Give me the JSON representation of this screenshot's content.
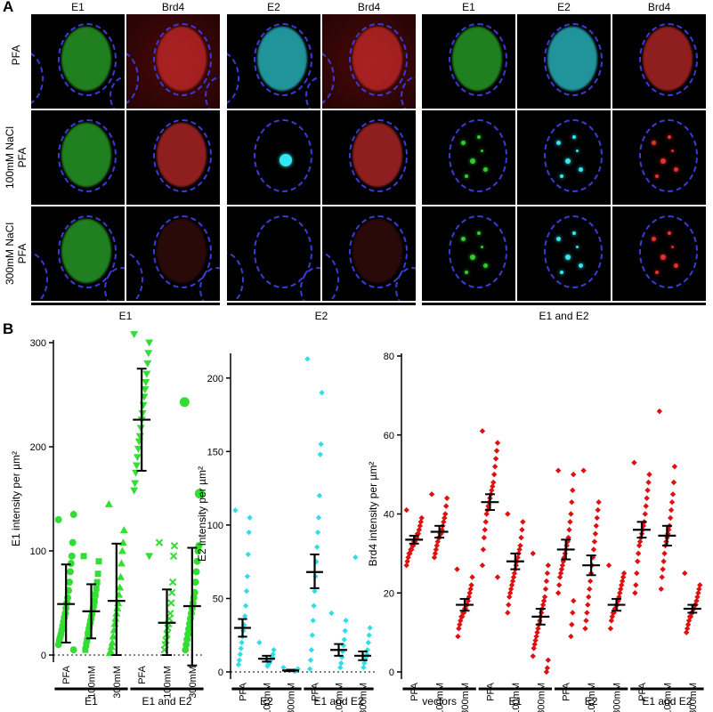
{
  "panel_a": {
    "letter": "A",
    "groups": [
      {
        "label": "E1",
        "columns": [
          "E1",
          "Brd4"
        ]
      },
      {
        "label": "E2",
        "columns": [
          "E2",
          "Brd4"
        ]
      },
      {
        "label": "E1 and E2",
        "columns": [
          "E1",
          "E2",
          "Brd4"
        ]
      }
    ],
    "rows": [
      {
        "line1": "PFA",
        "line2": ""
      },
      {
        "line1": "100mM NaCl",
        "line2": "PFA"
      },
      {
        "line1": "300mM NaCl",
        "line2": "PFA"
      }
    ],
    "colors": {
      "E1": "#32c832",
      "E2": "#33e6f2",
      "Brd4": "#e03030",
      "nucleus_outline": "#3b3bd6"
    }
  },
  "panel_b": {
    "letter": "B",
    "chart_data": [
      {
        "type": "scatter",
        "ylabel": "E1 intensity per µm²",
        "ylim": [
          0,
          300
        ],
        "yticks": [
          0,
          100,
          200,
          300
        ],
        "color": "#33dd33",
        "categories": [
          "PFA",
          "100mM",
          "300mM",
          "PFA",
          "100mM",
          "300mM"
        ],
        "groups": [
          {
            "label": "E1",
            "span": [
              0,
              2
            ]
          },
          {
            "label": "E1 and E2",
            "span": [
              3,
              5
            ]
          }
        ],
        "mean": [
          49,
          42,
          52,
          226,
          31,
          47
        ],
        "sd_low": [
          12,
          16,
          0,
          177,
          0,
          -10
        ],
        "sd_high": [
          87,
          68,
          107,
          275,
          63,
          103
        ],
        "points": [
          [
            130,
            135,
            108,
            95,
            88,
            80,
            70,
            62,
            55,
            50,
            45,
            40,
            36,
            32,
            28,
            24,
            20,
            17,
            14,
            10,
            5
          ],
          [
            95,
            90,
            78,
            70,
            64,
            58,
            52,
            48,
            44,
            40,
            36,
            32,
            28,
            24,
            20,
            14,
            10,
            5
          ],
          [
            145,
            120,
            108,
            100,
            88,
            75,
            65,
            58,
            50,
            45,
            40,
            35,
            30,
            24,
            18,
            12,
            8,
            4,
            2
          ],
          [
            308,
            300,
            290,
            280,
            270,
            262,
            255,
            248,
            240,
            232,
            226,
            218,
            210,
            205,
            198,
            190,
            182,
            175,
            165,
            158,
            95
          ],
          [
            108,
            105,
            95,
            70,
            60,
            50,
            40,
            35,
            30,
            26,
            20,
            14,
            10,
            5
          ],
          [
            243,
            155,
            105,
            100,
            90,
            80,
            70,
            60,
            55,
            50,
            45,
            40,
            35,
            30,
            25,
            20,
            15,
            10,
            5
          ]
        ],
        "markers": [
          "circle",
          "square",
          "triangle",
          "triangle-down",
          "x",
          "circle"
        ]
      },
      {
        "type": "scatter",
        "ylabel": "E2 intensity per µm²",
        "ylim": [
          0,
          215
        ],
        "yticks": [
          0,
          50,
          100,
          150,
          200
        ],
        "color": "#33dde8",
        "categories": [
          "PFA",
          "100mM",
          "300mM",
          "PFA",
          "100mM",
          "300mM"
        ],
        "groups": [
          {
            "label": "E2",
            "span": [
              0,
              2
            ]
          },
          {
            "label": "E1 and E2",
            "span": [
              3,
              5
            ]
          }
        ],
        "mean": [
          30,
          9,
          1,
          68,
          15,
          11
        ],
        "sem_low": [
          24,
          7,
          0.5,
          57,
          11,
          8
        ],
        "sem_high": [
          36,
          11,
          1.5,
          80,
          19,
          14
        ],
        "points": [
          [
            110,
            105,
            95,
            80,
            65,
            55,
            45,
            38,
            32,
            28,
            24,
            20,
            16,
            12,
            8,
            5
          ],
          [
            20,
            15,
            12,
            10,
            9,
            8,
            7,
            6,
            5,
            4
          ],
          [
            3,
            2,
            1.5,
            1,
            0.8,
            0.5
          ],
          [
            213,
            190,
            155,
            148,
            120,
            105,
            95,
            85,
            75,
            65,
            55,
            45,
            35,
            25,
            15,
            8,
            2
          ],
          [
            40,
            35,
            28,
            22,
            18,
            14,
            10,
            6,
            3
          ],
          [
            78,
            30,
            25,
            20,
            15,
            12,
            10,
            8,
            6,
            3
          ]
        ]
      },
      {
        "type": "scatter",
        "ylabel": "Brd4 intensity per µm²",
        "ylim": [
          0,
          80
        ],
        "yticks": [
          0,
          20,
          40,
          60,
          80
        ],
        "color": "#dd1111",
        "categories": [
          "PFA",
          "100mM",
          "300mM",
          "PFA",
          "100mM",
          "300mM",
          "PFA",
          "100mM",
          "300mM",
          "PFA",
          "100mM",
          "300mM"
        ],
        "groups": [
          {
            "label": "vectors",
            "span": [
              0,
              2
            ]
          },
          {
            "label": "E1",
            "span": [
              3,
              5
            ]
          },
          {
            "label": "E2",
            "span": [
              6,
              8
            ]
          },
          {
            "label": "E1 and E2",
            "span": [
              9,
              11
            ]
          }
        ],
        "mean": [
          33.5,
          35.5,
          17,
          43,
          28,
          14,
          31,
          27,
          17,
          36,
          34.5,
          16
        ],
        "sem_low": [
          32.5,
          34,
          15.5,
          41,
          26,
          12,
          28.5,
          24.5,
          15.5,
          34,
          32,
          15
        ],
        "sem_high": [
          34.5,
          37,
          18.5,
          45,
          30,
          16,
          33.5,
          29.5,
          18.5,
          38,
          37,
          17
        ],
        "points": [
          [
            41,
            39,
            38,
            37,
            36,
            35,
            35,
            34,
            34,
            33,
            33,
            32,
            32,
            31,
            31,
            30,
            30,
            29,
            28,
            27
          ],
          [
            45,
            44,
            42,
            40,
            39,
            38,
            37,
            36,
            35,
            35,
            34,
            34,
            33,
            32,
            31,
            30,
            29
          ],
          [
            26,
            24,
            22,
            21,
            20,
            19,
            18,
            17,
            17,
            16,
            16,
            15,
            15,
            14,
            14,
            13,
            12,
            11,
            9
          ],
          [
            61,
            58,
            56,
            54,
            52,
            50,
            48,
            47,
            46,
            45,
            44,
            43,
            42,
            41,
            40,
            38,
            36,
            34,
            31,
            27,
            24
          ],
          [
            40,
            38,
            36,
            34,
            32,
            31,
            30,
            29,
            28,
            27,
            26,
            25,
            24,
            23,
            22,
            21,
            20,
            19,
            17,
            15
          ],
          [
            30,
            27,
            25,
            23,
            21,
            19,
            18,
            17,
            16,
            15,
            14,
            13,
            12,
            11,
            10,
            9,
            8,
            7,
            6,
            4,
            3,
            1,
            0
          ],
          [
            51,
            50,
            46,
            43,
            40,
            38,
            36,
            34,
            33,
            32,
            31,
            30,
            29,
            28,
            27,
            26,
            25,
            24,
            22,
            20,
            18,
            15,
            12,
            9
          ],
          [
            51,
            43,
            41,
            39,
            37,
            35,
            33,
            31,
            29,
            27,
            25,
            23,
            21,
            19,
            17,
            15,
            13,
            11
          ],
          [
            27,
            25,
            24,
            23,
            22,
            21,
            20,
            19,
            18,
            17,
            17,
            16,
            16,
            15,
            15,
            14,
            13,
            11
          ],
          [
            53,
            50,
            48,
            46,
            44,
            42,
            40,
            38,
            37,
            36,
            35,
            34,
            33,
            32,
            30,
            28,
            25,
            22,
            20
          ],
          [
            66,
            52,
            48,
            45,
            43,
            41,
            39,
            37,
            36,
            35,
            34,
            33,
            32,
            30,
            28,
            26,
            24,
            21
          ],
          [
            25,
            22,
            21,
            20,
            19,
            18,
            17,
            17,
            16,
            16,
            15,
            15,
            14,
            14,
            13,
            12,
            11,
            10
          ]
        ]
      }
    ]
  }
}
